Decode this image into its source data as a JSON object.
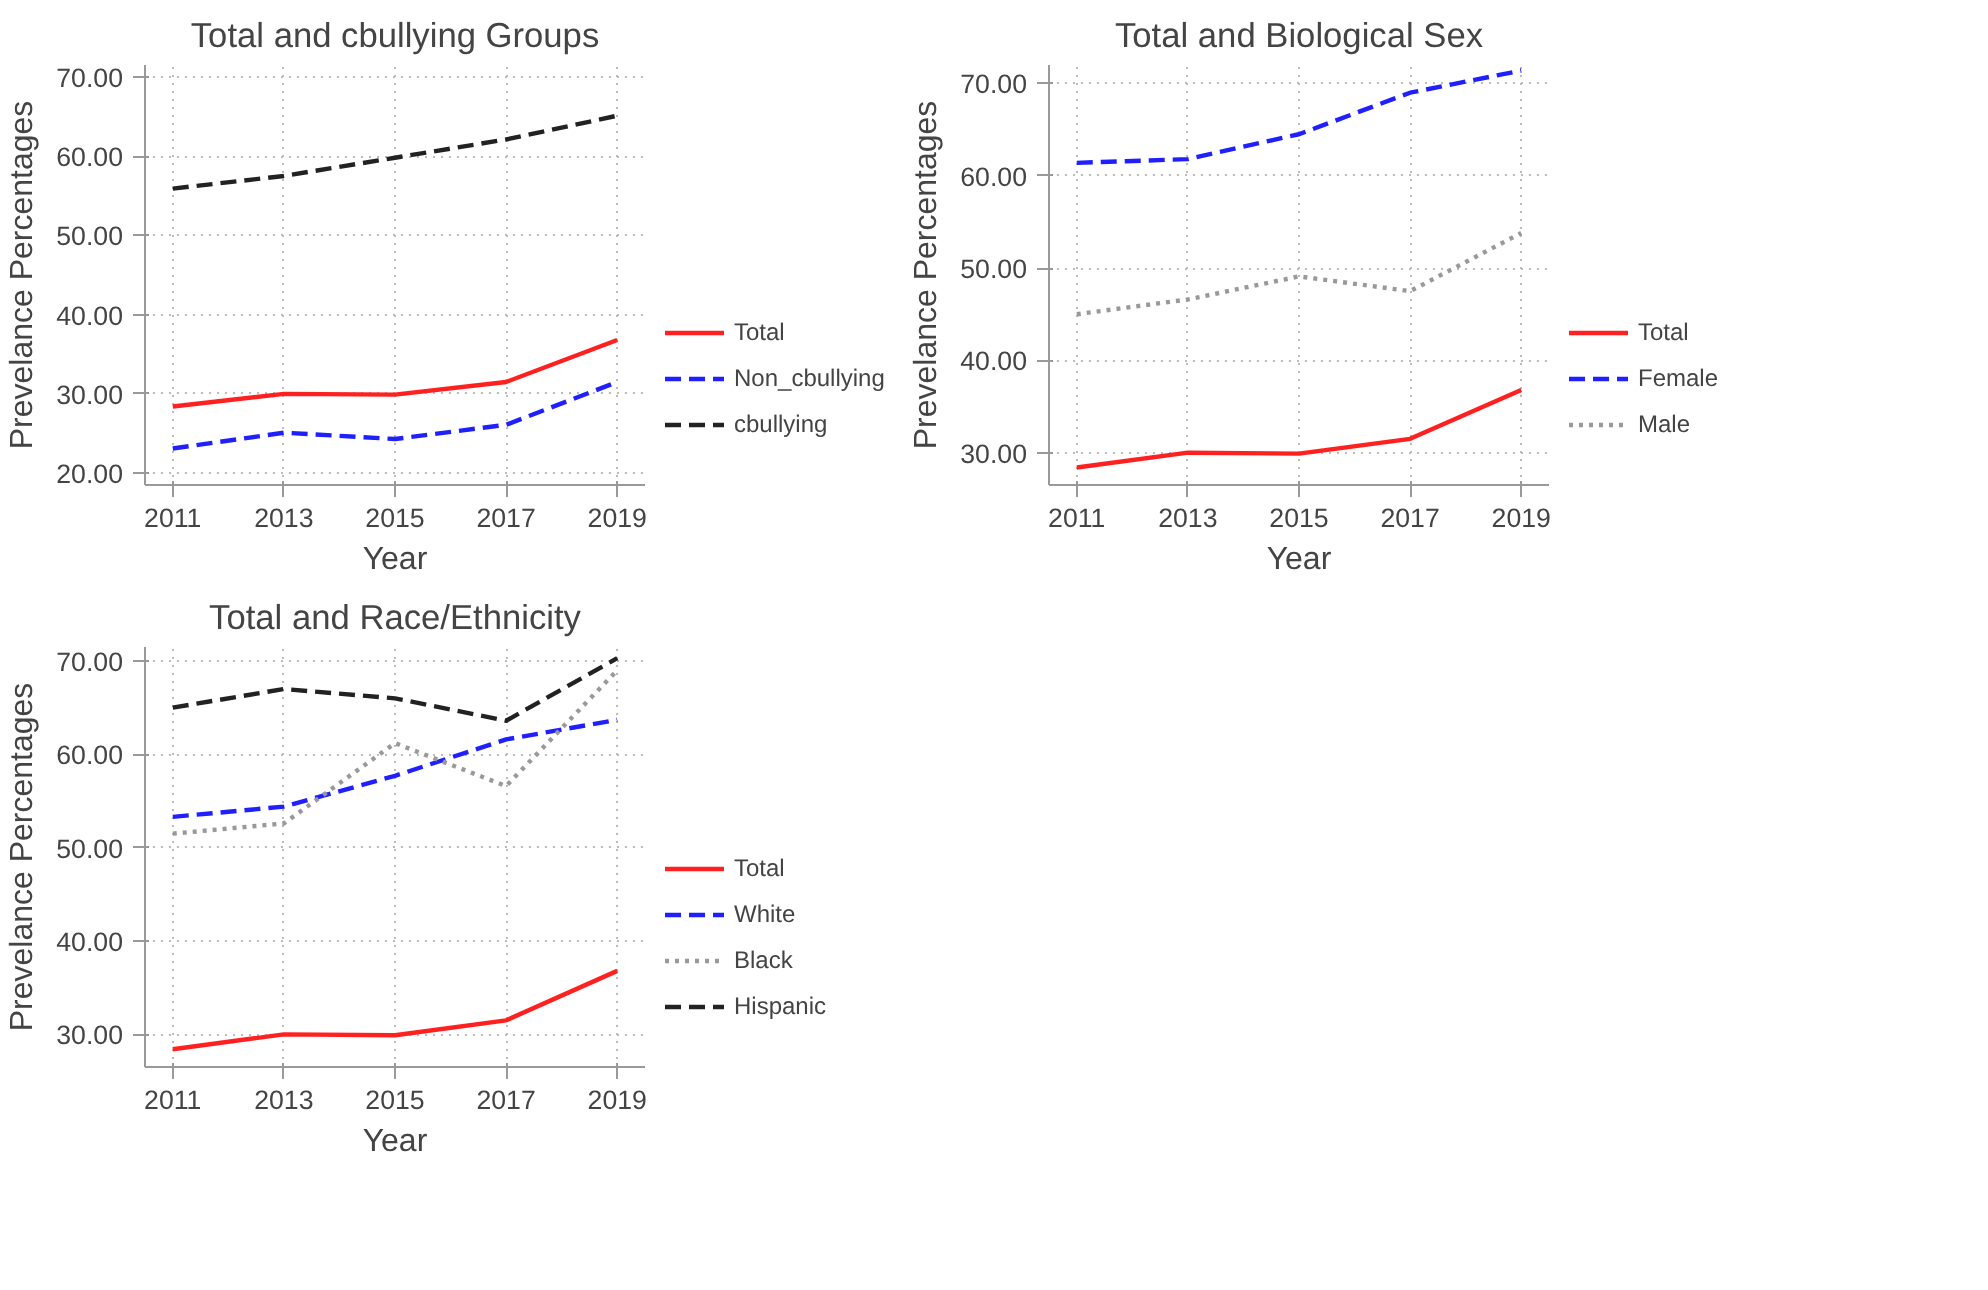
{
  "chart_data": [
    {
      "type": "line",
      "title": "Total and cbullying Groups",
      "xlabel": "Year",
      "ylabel": "Prevelance Percentages",
      "x": [
        2011,
        2013,
        2015,
        2017,
        2019
      ],
      "xlim": [
        2010.5,
        2019.5
      ],
      "xticks": [
        2011,
        2013,
        2015,
        2017,
        2019
      ],
      "ylim": [
        18.5,
        71.5
      ],
      "yticks": [
        {
          "value": 20,
          "label": "20.00"
        },
        {
          "value": 30,
          "label": "30.00"
        },
        {
          "value": 40,
          "label": "40.00"
        },
        {
          "value": 50,
          "label": "50.00"
        },
        {
          "value": 60,
          "label": "60.00"
        },
        {
          "value": 70,
          "label": "70.00"
        }
      ],
      "grid": true,
      "legend": "right",
      "marker": "none",
      "series": [
        {
          "name": "Total",
          "color": "#ff2020",
          "line_style": "solid",
          "values": [
            28.4,
            30.0,
            29.9,
            31.5,
            36.8
          ]
        },
        {
          "name": "Non_cbullying",
          "color": "#2020ff",
          "line_style": "dashed",
          "values": [
            23.1,
            25.1,
            24.3,
            26.1,
            31.5
          ]
        },
        {
          "name": "cbullying",
          "color": "#222222",
          "line_style": "dashed",
          "values": [
            55.9,
            57.5,
            59.8,
            62.1,
            65.1
          ]
        }
      ]
    },
    {
      "type": "line",
      "title": "Total and Biological Sex",
      "xlabel": "Year",
      "ylabel": "Prevelance Percentages",
      "x": [
        2011,
        2013,
        2015,
        2017,
        2019
      ],
      "xlim": [
        2010.5,
        2019.5
      ],
      "xticks": [
        2011,
        2013,
        2015,
        2017,
        2019
      ],
      "ylim": [
        26.5,
        72
      ],
      "yticks": [
        {
          "value": 30,
          "label": "30.00"
        },
        {
          "value": 40,
          "label": "40.00"
        },
        {
          "value": 50,
          "label": "50.00"
        },
        {
          "value": 60,
          "label": "60.00"
        },
        {
          "value": 70,
          "label": "70.00"
        }
      ],
      "grid": true,
      "legend": "right",
      "marker": "none",
      "series": [
        {
          "name": "Total",
          "color": "#ff2020",
          "line_style": "solid",
          "values": [
            28.4,
            30.0,
            29.9,
            31.5,
            36.8
          ]
        },
        {
          "name": "Female",
          "color": "#2020ff",
          "line_style": "dashed",
          "values": [
            61.4,
            61.8,
            64.5,
            69.0,
            71.4
          ]
        },
        {
          "name": "Male",
          "color": "#999999",
          "line_style": "dotted",
          "values": [
            45.0,
            46.6,
            49.1,
            47.5,
            53.8
          ]
        }
      ]
    },
    {
      "type": "line",
      "title": "Total and Race/Ethnicity",
      "xlabel": "Year",
      "ylabel": "Prevelance Percentages",
      "x": [
        2011,
        2013,
        2015,
        2017,
        2019
      ],
      "xlim": [
        2010.5,
        2019.5
      ],
      "xticks": [
        2011,
        2013,
        2015,
        2017,
        2019
      ],
      "ylim": [
        26.5,
        71.5
      ],
      "yticks": [
        {
          "value": 30,
          "label": "30.00"
        },
        {
          "value": 40,
          "label": "40.00"
        },
        {
          "value": 50,
          "label": "50.00"
        },
        {
          "value": 60,
          "label": "60.00"
        },
        {
          "value": 70,
          "label": "70.00"
        }
      ],
      "grid": true,
      "legend": "right",
      "marker": "none",
      "series": [
        {
          "name": "Total",
          "color": "#ff2020",
          "line_style": "solid",
          "values": [
            28.4,
            30.0,
            29.9,
            31.5,
            36.8
          ]
        },
        {
          "name": "White",
          "color": "#2020ff",
          "line_style": "dashed",
          "values": [
            53.3,
            54.4,
            57.7,
            61.6,
            63.7
          ]
        },
        {
          "name": "Black",
          "color": "#999999",
          "line_style": "dotted",
          "values": [
            51.5,
            52.6,
            61.2,
            56.6,
            69.0
          ]
        },
        {
          "name": "Hispanic",
          "color": "#222222",
          "line_style": "dashed",
          "values": [
            65.0,
            67.0,
            66.0,
            63.6,
            70.3
          ]
        }
      ]
    }
  ]
}
